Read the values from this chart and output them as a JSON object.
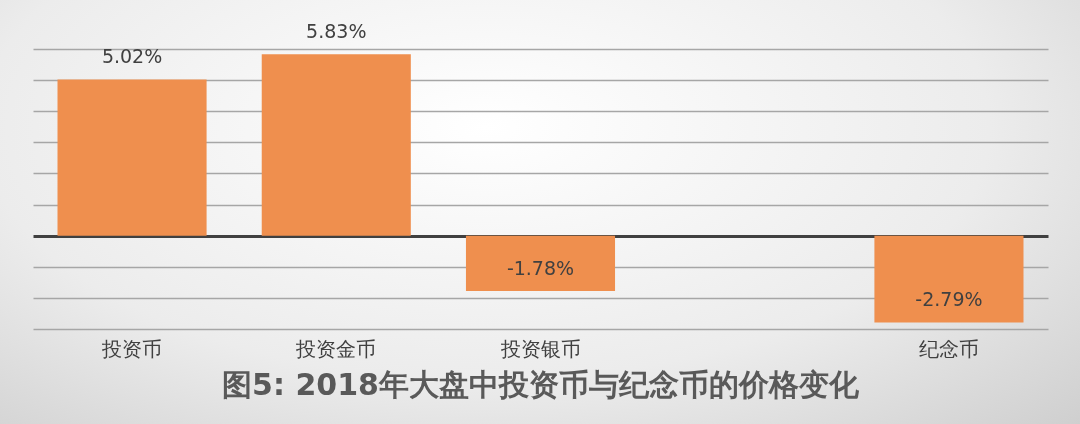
{
  "chart_data": {
    "type": "bar",
    "title": "图5: 2018年大盘中投资币与纪念币的价格变化",
    "categories": [
      "投资币",
      "投资金币",
      "投资银币",
      null,
      "纪念币"
    ],
    "values": [
      5.02,
      5.83,
      -1.78,
      null,
      -2.79
    ],
    "value_labels": [
      "5.02%",
      "5.83%",
      "-1.78%",
      null,
      "-2.79%"
    ],
    "color": "#ef8f4e",
    "grid": "y",
    "tick_labels": "x"
  }
}
